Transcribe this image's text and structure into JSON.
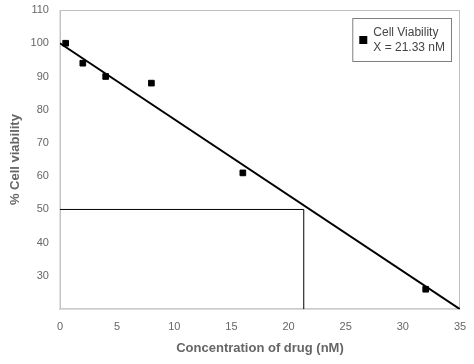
{
  "chart_data": {
    "type": "scatter",
    "xlabel": "Concentration of drug (nM)",
    "ylabel": "% Cell viability",
    "series": [
      {
        "name": "Cell Viability\nX = 21.33 nM",
        "type": "scatter",
        "marker": "square",
        "color": "#000000",
        "x": [
          0.5,
          2.0,
          4.0,
          8.0,
          16.0,
          32.0
        ],
        "values": [
          100.0,
          94.0,
          90.0,
          88.0,
          61.0,
          26.0
        ]
      },
      {
        "type": "line",
        "color": "#000000",
        "x": [
          0.0,
          35.0
        ],
        "values": [
          100.0,
          20.0
        ]
      },
      {
        "type": "line",
        "color": "#000000",
        "x": [
          0,
          21.33
        ],
        "values": [
          50.0,
          50.0
        ]
      },
      {
        "type": "line",
        "color": "#000000",
        "x": [
          21.33,
          21.33
        ],
        "values": [
          20,
          50.0
        ]
      }
    ],
    "xlim": [
      0,
      35
    ],
    "ylim": [
      20,
      110
    ],
    "xticks": [
      0,
      5,
      10,
      15,
      20,
      25,
      30,
      35
    ],
    "yticks": [
      30,
      40,
      50,
      60,
      70,
      80,
      90,
      100,
      110
    ],
    "grid": false,
    "legend": "upper right"
  }
}
